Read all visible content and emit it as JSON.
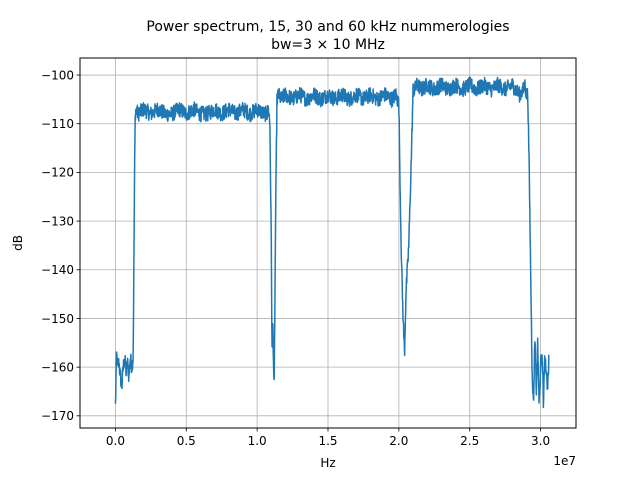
{
  "chart_data": {
    "type": "line",
    "title": "Power spectrum, 15, 30 and 60 kHz nummerologies",
    "subtitle": "bw=3 × 10 MHz",
    "xlabel": "Hz",
    "ylabel": "dB",
    "x_offset_label": "1e7",
    "xlim": [
      -2500000,
      32500000
    ],
    "ylim": [
      -172.5,
      -96.5
    ],
    "grid": true,
    "x_ticks": [
      0,
      5000000,
      10000000,
      15000000,
      20000000,
      25000000,
      30000000
    ],
    "x_tick_labels": [
      "0.0",
      "0.5",
      "1.0",
      "1.5",
      "2.0",
      "2.5",
      "3.0"
    ],
    "y_ticks": [
      -100,
      -110,
      -120,
      -130,
      -140,
      -150,
      -160,
      -170
    ],
    "y_tick_labels": [
      "−100",
      "−110",
      "−120",
      "−130",
      "−140",
      "−150",
      "−160",
      "−170"
    ],
    "series_color": "#1f77b4",
    "series": [
      {
        "x": [
          0,
          80000,
          150000,
          250000,
          350000,
          450000,
          550000,
          650000,
          750000,
          850000,
          950000,
          1050000,
          1150000,
          1250000,
          1300000,
          1350000,
          1400000,
          1450000,
          1600000,
          2000000,
          2500000,
          3000000,
          3500000,
          4000000,
          4500000,
          5000000,
          5500000,
          6000000,
          6500000,
          7000000,
          7500000,
          8000000,
          8500000,
          9000000,
          9500000,
          10000000,
          10500000,
          10700000,
          10800000,
          10900000,
          11000000,
          11050000,
          11100000,
          11200000,
          11300000,
          11400000,
          11500000,
          11700000,
          12000000,
          12500000,
          13000000,
          13500000,
          14000000,
          14500000,
          15000000,
          15500000,
          16000000,
          16500000,
          17000000,
          17500000,
          18000000,
          18500000,
          19000000,
          19500000,
          19800000,
          19900000,
          20000000,
          20100000,
          20200000,
          20300000,
          20400000,
          20500000,
          20600000,
          20700000,
          20800000,
          20900000,
          21000000,
          21100000,
          21300000,
          21600000,
          22000000,
          22500000,
          23000000,
          23500000,
          24000000,
          24500000,
          25000000,
          25500000,
          26000000,
          26500000,
          27000000,
          27500000,
          28000000,
          28500000,
          28800000,
          28900000,
          29000000,
          29100000,
          29200000,
          29300000,
          29400000,
          29500000,
          29600000,
          29700000,
          29800000,
          29900000,
          30000000,
          30100000,
          30200000,
          30300000,
          30400000,
          30500000,
          30600000
        ],
        "y": [
          -168,
          -157,
          -160,
          -159,
          -162,
          -164,
          -160,
          -158,
          -161,
          -159,
          -162,
          -158,
          -160,
          -158,
          -140,
          -120,
          -108,
          -107,
          -108,
          -107,
          -108,
          -107,
          -108,
          -108,
          -107,
          -108,
          -107,
          -108,
          -108,
          -107,
          -108,
          -107,
          -108,
          -107,
          -108,
          -107,
          -108,
          -108,
          -107,
          -110,
          -135,
          -157,
          -150,
          -166,
          -130,
          -105,
          -104,
          -105,
          -104,
          -105,
          -104,
          -105,
          -104,
          -105,
          -104,
          -105,
          -104,
          -105,
          -104,
          -105,
          -104,
          -105,
          -104,
          -105,
          -104,
          -105,
          -106,
          -125,
          -140,
          -150,
          -157,
          -145,
          -140,
          -135,
          -125,
          -115,
          -103,
          -103,
          -102,
          -103,
          -102,
          -103,
          -102,
          -103,
          -102,
          -103,
          -102,
          -103,
          -102,
          -103,
          -102,
          -103,
          -102,
          -104,
          -103,
          -102,
          -104,
          -104,
          -120,
          -140,
          -160,
          -168,
          -153,
          -165,
          -155,
          -168,
          -160,
          -156,
          -167,
          -158,
          -162,
          -164,
          -158
        ],
        "noise_amplitude_db": 1.6
      }
    ]
  }
}
